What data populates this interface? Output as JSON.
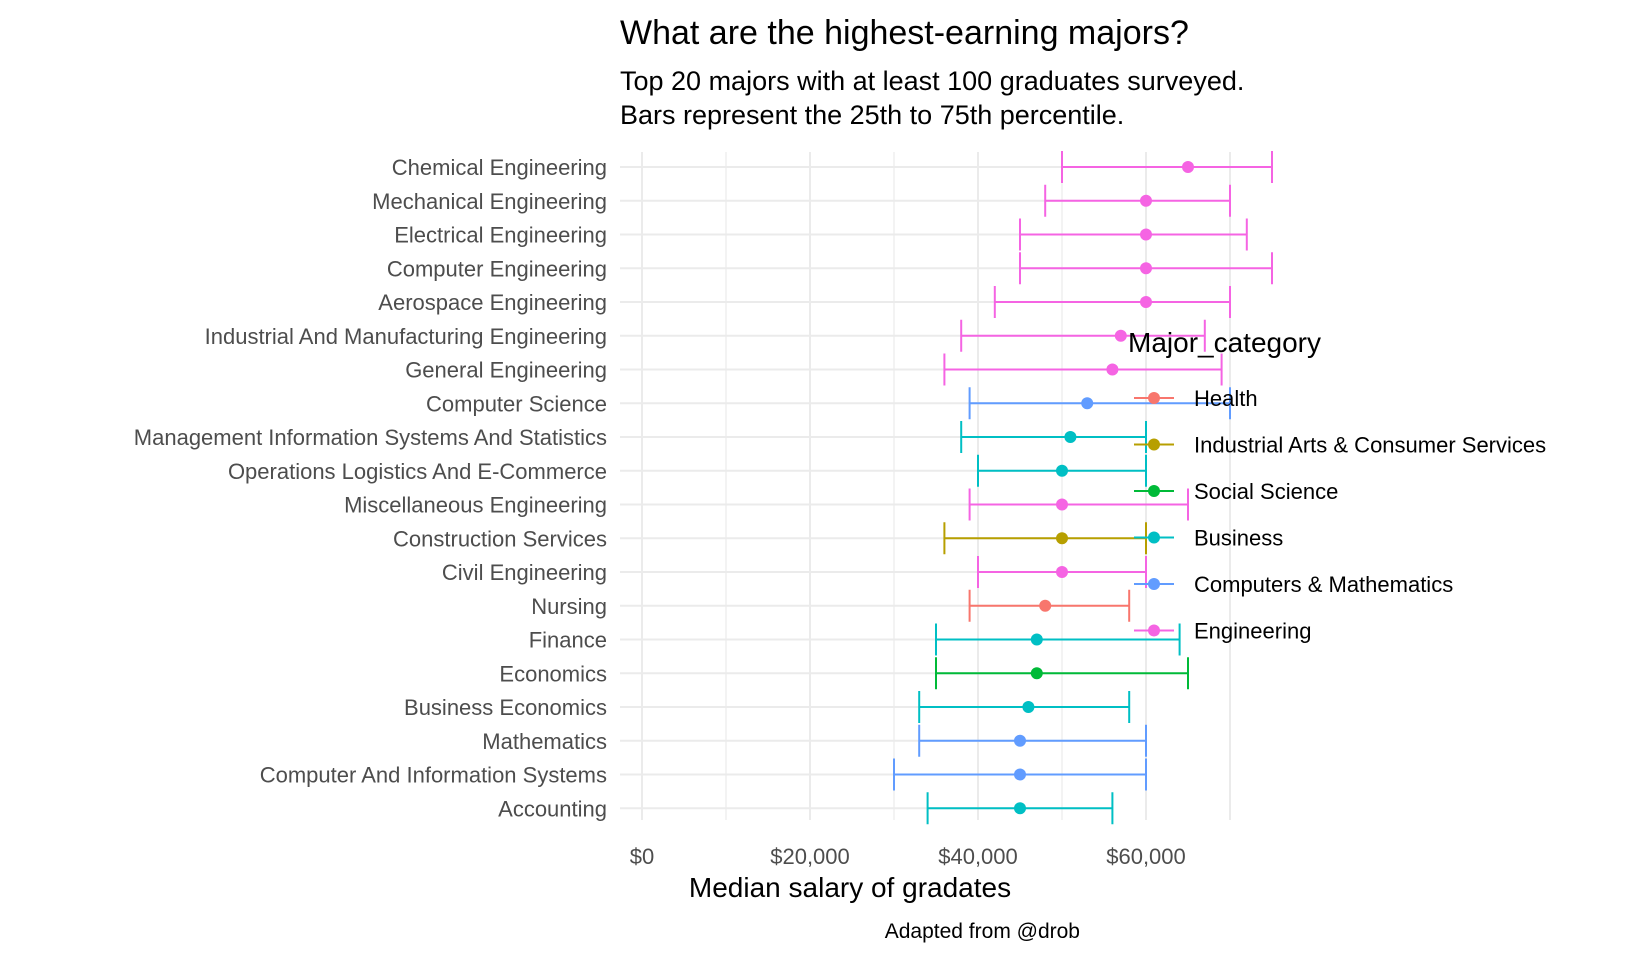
{
  "chart_data": {
    "type": "errorbar",
    "title": "What are the highest-earning majors?",
    "subtitle": [
      "Top 20 majors with at least 100 graduates surveyed.",
      "Bars represent the 25th to 75th percentile."
    ],
    "xlabel": "Median salary of gradates",
    "ylabel": "",
    "caption": "Adapted from @drob",
    "xlim": [
      -4000,
      79000
    ],
    "x_ticks": [
      0,
      20000,
      40000,
      60000
    ],
    "x_tick_labels": [
      "$0",
      "$20,000",
      "$40,000",
      "$60,000"
    ],
    "grid": true,
    "legend": {
      "title": "Major_category",
      "position": "right",
      "entries": [
        {
          "name": "Health",
          "color": "#F8766D"
        },
        {
          "name": "Industrial Arts & Consumer Services",
          "color": "#B79F00"
        },
        {
          "name": "Social Science",
          "color": "#00BA38"
        },
        {
          "name": "Business",
          "color": "#00BFC4"
        },
        {
          "name": "Computers & Mathematics",
          "color": "#619CFF"
        },
        {
          "name": "Engineering",
          "color": "#F564E3"
        }
      ]
    },
    "rows": [
      {
        "major": "Chemical Engineering",
        "category": "Engineering",
        "p25": 50000,
        "median": 65000,
        "p75": 75000
      },
      {
        "major": "Mechanical Engineering",
        "category": "Engineering",
        "p25": 48000,
        "median": 60000,
        "p75": 70000
      },
      {
        "major": "Electrical Engineering",
        "category": "Engineering",
        "p25": 45000,
        "median": 60000,
        "p75": 72000
      },
      {
        "major": "Computer Engineering",
        "category": "Engineering",
        "p25": 45000,
        "median": 60000,
        "p75": 75000
      },
      {
        "major": "Aerospace Engineering",
        "category": "Engineering",
        "p25": 42000,
        "median": 60000,
        "p75": 70000
      },
      {
        "major": "Industrial And Manufacturing Engineering",
        "category": "Engineering",
        "p25": 38000,
        "median": 57000,
        "p75": 67000
      },
      {
        "major": "General Engineering",
        "category": "Engineering",
        "p25": 36000,
        "median": 56000,
        "p75": 69000
      },
      {
        "major": "Computer Science",
        "category": "Computers & Mathematics",
        "p25": 39000,
        "median": 53000,
        "p75": 70000
      },
      {
        "major": "Management Information Systems And Statistics",
        "category": "Business",
        "p25": 38000,
        "median": 51000,
        "p75": 60000
      },
      {
        "major": "Operations Logistics And E-Commerce",
        "category": "Business",
        "p25": 40000,
        "median": 50000,
        "p75": 60000
      },
      {
        "major": "Miscellaneous Engineering",
        "category": "Engineering",
        "p25": 39000,
        "median": 50000,
        "p75": 65000
      },
      {
        "major": "Construction Services",
        "category": "Industrial Arts & Consumer Services",
        "p25": 36000,
        "median": 50000,
        "p75": 60000
      },
      {
        "major": "Civil Engineering",
        "category": "Engineering",
        "p25": 40000,
        "median": 50000,
        "p75": 60000
      },
      {
        "major": "Nursing",
        "category": "Health",
        "p25": 39000,
        "median": 48000,
        "p75": 58000
      },
      {
        "major": "Finance",
        "category": "Business",
        "p25": 35000,
        "median": 47000,
        "p75": 64000
      },
      {
        "major": "Economics",
        "category": "Social Science",
        "p25": 35000,
        "median": 47000,
        "p75": 65000
      },
      {
        "major": "Business Economics",
        "category": "Business",
        "p25": 33000,
        "median": 46000,
        "p75": 58000
      },
      {
        "major": "Mathematics",
        "category": "Computers & Mathematics",
        "p25": 33000,
        "median": 45000,
        "p75": 60000
      },
      {
        "major": "Computer And Information Systems",
        "category": "Computers & Mathematics",
        "p25": 30000,
        "median": 45000,
        "p75": 60000
      },
      {
        "major": "Accounting",
        "category": "Business",
        "p25": 34000,
        "median": 45000,
        "p75": 56000
      }
    ]
  }
}
